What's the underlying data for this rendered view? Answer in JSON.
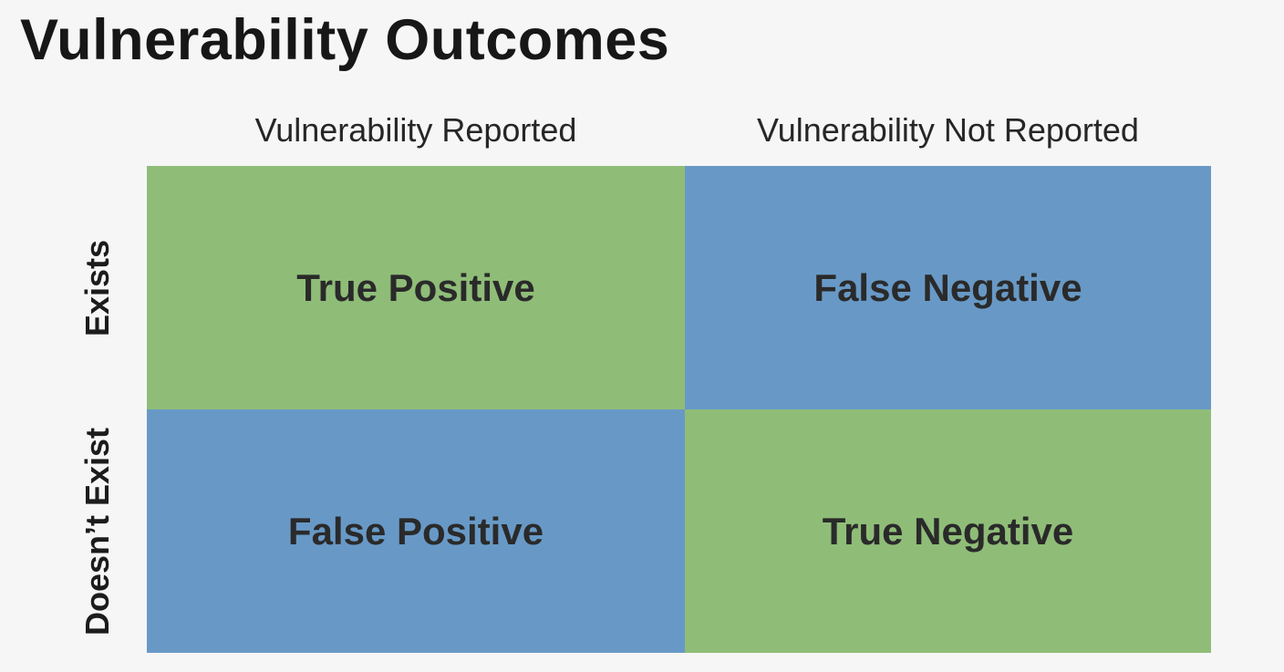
{
  "title": "Vulnerability Outcomes",
  "columns": [
    "Vulnerability Reported",
    "Vulnerability Not Reported"
  ],
  "rows": [
    "Exists",
    "Doesn’t Exist"
  ],
  "cells": [
    {
      "label": "True Positive",
      "color": "#8fbd78"
    },
    {
      "label": "False Negative",
      "color": "#6899c6"
    },
    {
      "label": "False Positive",
      "color": "#6899c6"
    },
    {
      "label": "True Negative",
      "color": "#8fbd78"
    }
  ]
}
